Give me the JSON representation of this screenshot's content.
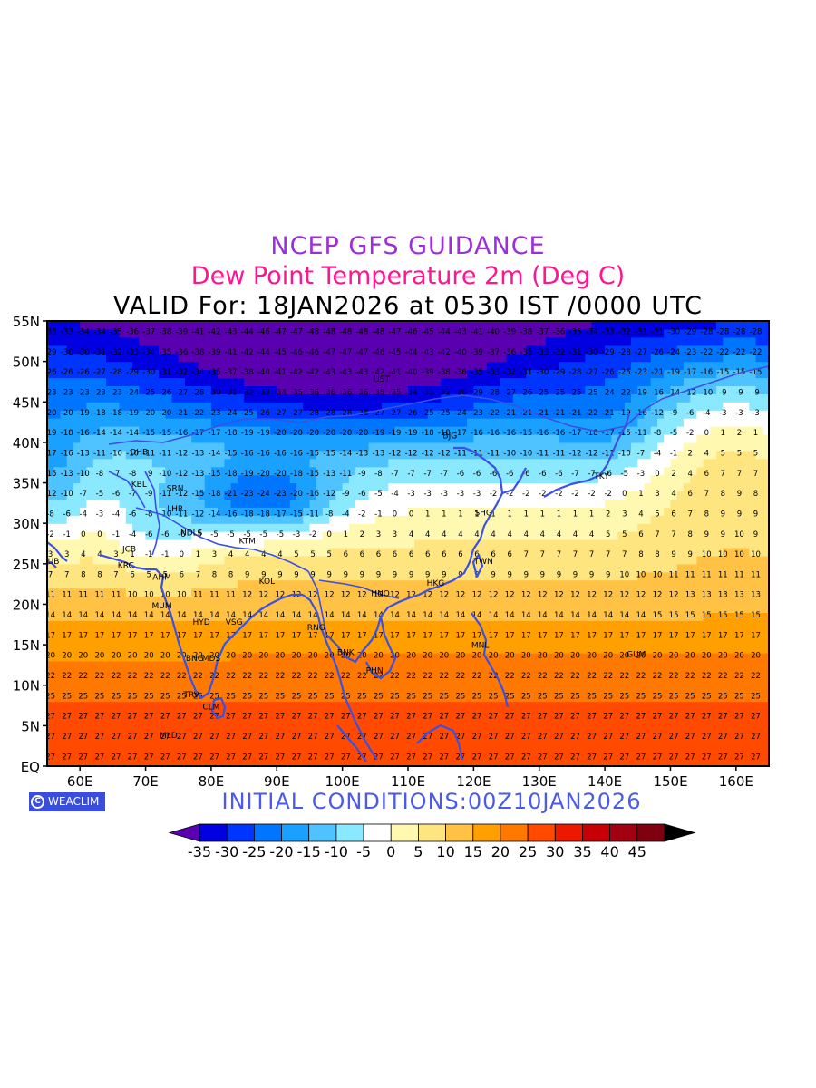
{
  "titles": {
    "line1": "NCEP GFS GUIDANCE",
    "line2": "Dew Point Temperature 2m (Deg C)",
    "line3": "VALID For: 18JAN2026 at 0530 IST /0000 UTC"
  },
  "footer": {
    "logo": "WEACLIM",
    "initial": "INITIAL  CONDITIONS:00Z10JAN2026"
  },
  "map": {
    "lon_range": [
      55,
      165
    ],
    "lat_range": [
      0,
      55
    ],
    "lat_labels": [
      "EQ",
      "5N",
      "10N",
      "15N",
      "20N",
      "25N",
      "30N",
      "35N",
      "40N",
      "45N",
      "50N",
      "55N"
    ],
    "lon_labels": [
      "60E",
      "70E",
      "80E",
      "90E",
      "100E",
      "110E",
      "120E",
      "130E",
      "140E",
      "150E",
      "160E"
    ],
    "stations": [
      {
        "name": "UST",
        "lon": 106,
        "lat": 47.5
      },
      {
        "name": "DHB",
        "lon": 69,
        "lat": 38.5
      },
      {
        "name": "SRN",
        "lon": 74.5,
        "lat": 34
      },
      {
        "name": "KBL",
        "lon": 69,
        "lat": 34.5
      },
      {
        "name": "LHR",
        "lon": 74.5,
        "lat": 31.5
      },
      {
        "name": "JCB",
        "lon": 67.5,
        "lat": 26.5
      },
      {
        "name": "NDLS",
        "lon": 77,
        "lat": 28.5
      },
      {
        "name": "KTM",
        "lon": 85.5,
        "lat": 27.5
      },
      {
        "name": "DUB",
        "lon": 55.5,
        "lat": 25
      },
      {
        "name": "KRC",
        "lon": 67,
        "lat": 24.5
      },
      {
        "name": "AHM",
        "lon": 72.5,
        "lat": 23
      },
      {
        "name": "MUM",
        "lon": 72.5,
        "lat": 19.5
      },
      {
        "name": "HYD",
        "lon": 78.5,
        "lat": 17.5
      },
      {
        "name": "VSG",
        "lon": 83.5,
        "lat": 17.5
      },
      {
        "name": "KOL",
        "lon": 88.5,
        "lat": 22.5
      },
      {
        "name": "SHG",
        "lon": 121.5,
        "lat": 31
      },
      {
        "name": "TKY",
        "lon": 139.5,
        "lat": 35.5
      },
      {
        "name": "BNG",
        "lon": 77.5,
        "lat": 13
      },
      {
        "name": "MDS",
        "lon": 80,
        "lat": 13
      },
      {
        "name": "TRV",
        "lon": 77,
        "lat": 8.5
      },
      {
        "name": "CLM",
        "lon": 80,
        "lat": 7
      },
      {
        "name": "MLD",
        "lon": 73.5,
        "lat": 3.5
      },
      {
        "name": "RNG",
        "lon": 96,
        "lat": 16.8
      },
      {
        "name": "BNK",
        "lon": 100.5,
        "lat": 13.7
      },
      {
        "name": "PHN",
        "lon": 104.9,
        "lat": 11.5
      },
      {
        "name": "HNO",
        "lon": 105.8,
        "lat": 21
      },
      {
        "name": "HKG",
        "lon": 114.2,
        "lat": 22.3
      },
      {
        "name": "TWN",
        "lon": 121.5,
        "lat": 25
      },
      {
        "name": "MNL",
        "lon": 121,
        "lat": 14.6
      },
      {
        "name": "GUM",
        "lon": 144.8,
        "lat": 13.5
      },
      {
        "name": "BJG",
        "lon": 116.4,
        "lat": 40.5
      }
    ]
  },
  "legend": {
    "labels": [
      "-35",
      "-30",
      "-25",
      "-20",
      "-15",
      "-10",
      "-5",
      "0",
      "5",
      "10",
      "15",
      "20",
      "25",
      "30",
      "35",
      "40",
      "45"
    ],
    "colors": [
      "#5a00b0",
      "#0000e0",
      "#0035ff",
      "#0075ff",
      "#1aa0ff",
      "#4ec3ff",
      "#8ae8ff",
      "#ffffff",
      "#fff8b0",
      "#ffe580",
      "#ffc244",
      "#ffa000",
      "#ff7800",
      "#ff4a00",
      "#ec1800",
      "#c70008",
      "#a00010",
      "#800010",
      "#000000"
    ]
  }
}
